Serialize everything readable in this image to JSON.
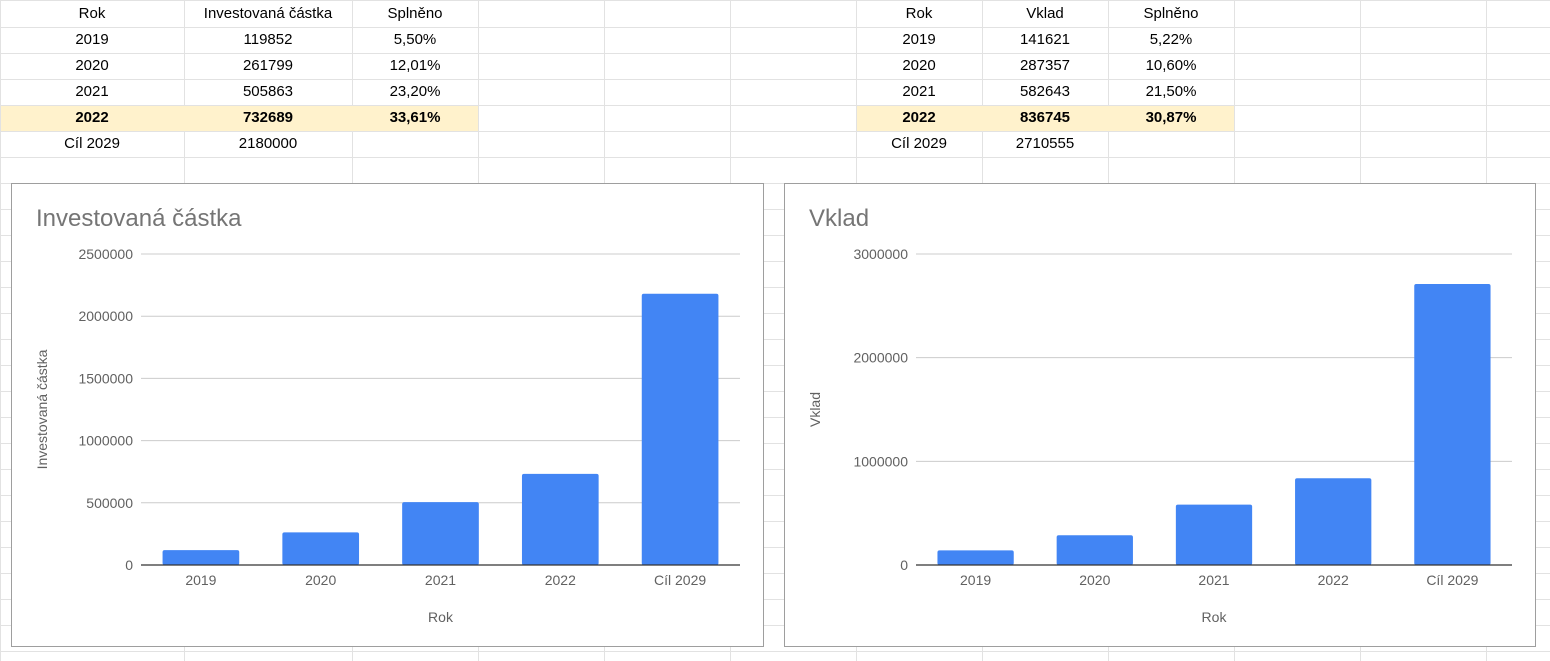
{
  "colors": {
    "highlight_row": "#fff2cc",
    "bar": "#4285f4",
    "gridline": "#cccccc",
    "sheet_grid": "#e2e2e2"
  },
  "left_table": {
    "headers": [
      "Rok",
      "Investovaná částka",
      "Splněno"
    ],
    "rows": [
      [
        "2019",
        "119852",
        "5,50%"
      ],
      [
        "2020",
        "261799",
        "12,01%"
      ],
      [
        "2021",
        "505863",
        "23,20%"
      ],
      [
        "2022",
        "732689",
        "33,61%"
      ],
      [
        "Cíl 2029",
        "2180000",
        ""
      ]
    ],
    "highlight_row_index": 3
  },
  "right_table": {
    "headers": [
      "Rok",
      "Vklad",
      "Splněno"
    ],
    "rows": [
      [
        "2019",
        "141621",
        "5,22%"
      ],
      [
        "2020",
        "287357",
        "10,60%"
      ],
      [
        "2021",
        "582643",
        "21,50%"
      ],
      [
        "2022",
        "836745",
        "30,87%"
      ],
      [
        "Cíl 2029",
        "2710555",
        ""
      ]
    ],
    "highlight_row_index": 3
  },
  "chart_data": [
    {
      "type": "bar",
      "title": "Investovaná částka",
      "xlabel": "Rok",
      "ylabel": "Investovaná částka",
      "categories": [
        "2019",
        "2020",
        "2021",
        "2022",
        "Cíl 2029"
      ],
      "values": [
        119852,
        261799,
        505863,
        732689,
        2180000
      ],
      "ylim": [
        0,
        2500000
      ],
      "yticks": [
        0,
        500000,
        1000000,
        1500000,
        2000000,
        2500000
      ],
      "ytick_labels": [
        "0",
        "500000",
        "1000000",
        "1500000",
        "2000000",
        "2500000"
      ],
      "grid": true,
      "legend": "none"
    },
    {
      "type": "bar",
      "title": "Vklad",
      "xlabel": "Rok",
      "ylabel": "Vklad",
      "categories": [
        "2019",
        "2020",
        "2021",
        "2022",
        "Cíl 2029"
      ],
      "values": [
        141621,
        287357,
        582643,
        836745,
        2710555
      ],
      "ylim": [
        0,
        3000000
      ],
      "yticks": [
        0,
        1000000,
        2000000,
        3000000
      ],
      "ytick_labels": [
        "0",
        "1000000",
        "2000000",
        "3000000"
      ],
      "grid": true,
      "legend": "none"
    }
  ]
}
